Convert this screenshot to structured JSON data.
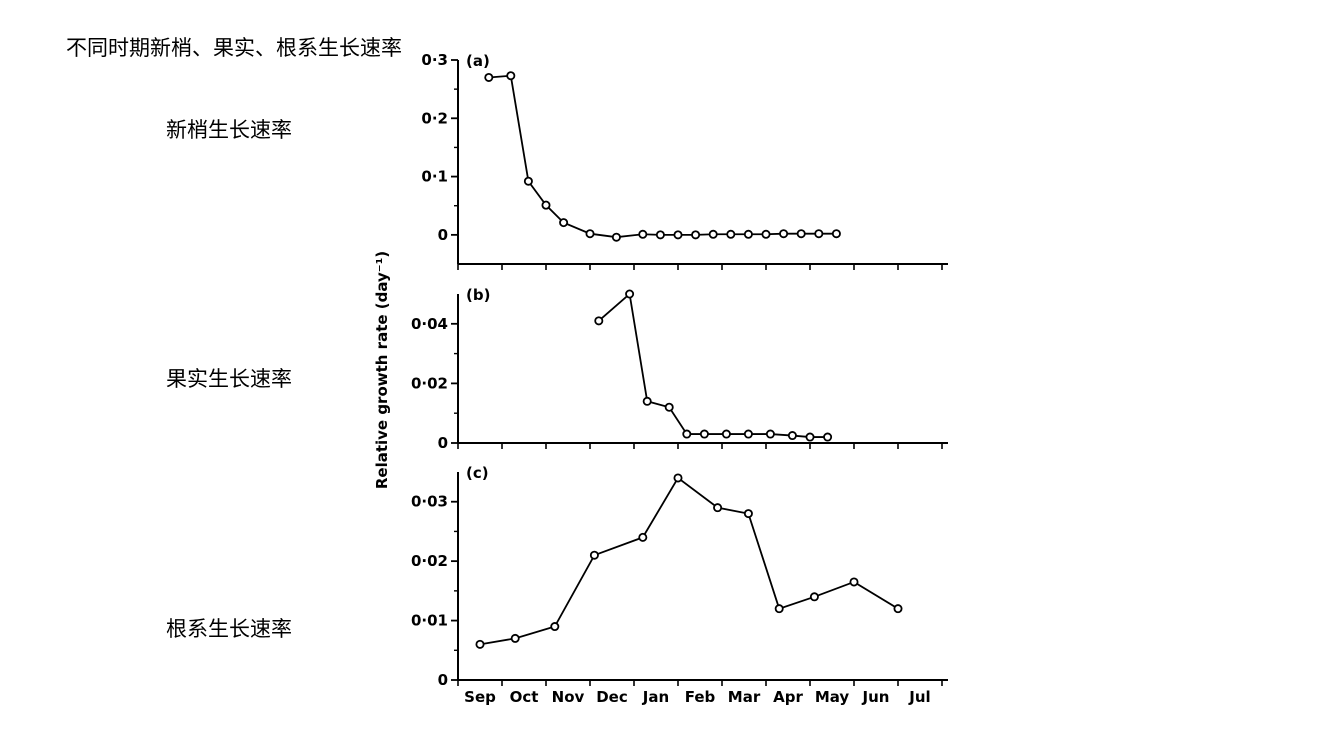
{
  "page": {
    "title": "不同时期新梢、果实、根系生长速率",
    "labels": [
      "新梢生长速率",
      "果实生长速率",
      "根系生长速率"
    ]
  },
  "chart_data": {
    "type": "line",
    "ylabel": "Relative growth rate (day⁻¹)",
    "months": [
      "Sep",
      "Oct",
      "Nov",
      "Dec",
      "Jan",
      "Feb",
      "Mar",
      "Apr",
      "May",
      "Jun",
      "Jul"
    ],
    "panels": [
      {
        "label": "(a)",
        "ylim": [
          -0.05,
          0.3
        ],
        "yticks": [
          0,
          0.1,
          0.2,
          0.3
        ],
        "ytick_labels": [
          "0",
          "0·1",
          "0·2",
          "0·3"
        ],
        "x": [
          0.7,
          1.2,
          1.6,
          2.0,
          2.4,
          3.0,
          3.6,
          4.2,
          4.6,
          5.0,
          5.4,
          5.8,
          6.2,
          6.6,
          7.0,
          7.4,
          7.8,
          8.2,
          8.6
        ],
        "y": [
          0.27,
          0.273,
          0.092,
          0.051,
          0.021,
          0.002,
          -0.004,
          0.001,
          0.0,
          0.0,
          0.0,
          0.001,
          0.001,
          0.001,
          0.001,
          0.002,
          0.002,
          0.002,
          0.002
        ]
      },
      {
        "label": "(b)",
        "ylim": [
          0,
          0.05
        ],
        "yticks": [
          0,
          0.02,
          0.04
        ],
        "ytick_labels": [
          "0",
          "0·02",
          "0·04"
        ],
        "x": [
          3.2,
          3.9,
          4.3,
          4.8,
          5.2,
          5.6,
          6.1,
          6.6,
          7.1,
          7.6,
          8.0,
          8.4
        ],
        "y": [
          0.041,
          0.05,
          0.014,
          0.012,
          0.003,
          0.003,
          0.003,
          0.003,
          0.003,
          0.0025,
          0.002,
          0.002
        ]
      },
      {
        "label": "(c)",
        "ylim": [
          0,
          0.035
        ],
        "yticks": [
          0,
          0.01,
          0.02,
          0.03
        ],
        "ytick_labels": [
          "0",
          "0·01",
          "0·02",
          "0·03"
        ],
        "x": [
          0.5,
          1.3,
          2.2,
          3.1,
          4.2,
          5.0,
          5.9,
          6.6,
          7.3,
          8.1,
          9.0,
          10.0
        ],
        "y": [
          0.006,
          0.007,
          0.009,
          0.021,
          0.024,
          0.034,
          0.029,
          0.028,
          0.012,
          0.014,
          0.0165,
          0.012
        ]
      }
    ]
  }
}
